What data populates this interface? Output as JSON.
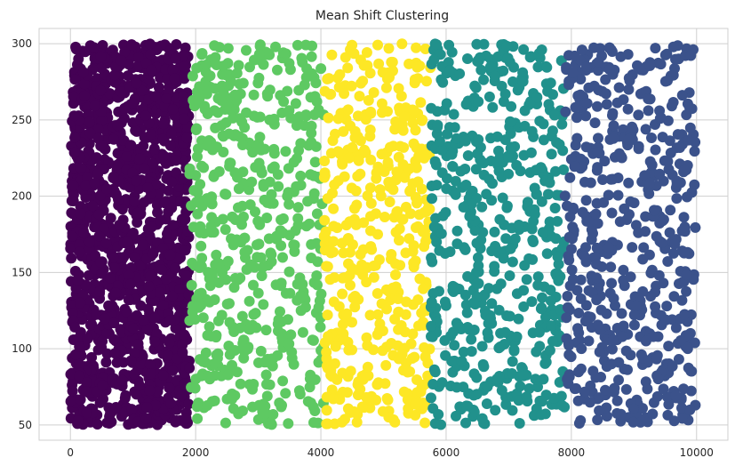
{
  "chart_data": {
    "type": "scatter",
    "title": "Mean Shift Clustering",
    "xlabel": "",
    "ylabel": "",
    "xlim": [
      -500,
      10500
    ],
    "ylim": [
      40,
      310
    ],
    "xticks": [
      0,
      2000,
      4000,
      6000,
      8000,
      10000
    ],
    "yticks": [
      50,
      100,
      150,
      200,
      250,
      300
    ],
    "grid": true,
    "legend": "none",
    "colors": [
      "#440154",
      "#5ec962",
      "#fde725",
      "#21918c",
      "#3b528b"
    ],
    "series": [
      {
        "x_range": [
          0,
          1900
        ],
        "y_range": [
          50,
          300
        ],
        "color": "#440154",
        "count": 1400
      },
      {
        "x_range": [
          1900,
          4050
        ],
        "y_range": [
          50,
          300
        ],
        "color": "#5ec962",
        "count": 520
      },
      {
        "x_range": [
          4050,
          5750
        ],
        "y_range": [
          50,
          300
        ],
        "color": "#fde725",
        "count": 430
      },
      {
        "x_range": [
          5750,
          7900
        ],
        "y_range": [
          50,
          300
        ],
        "color": "#21918c",
        "count": 520
      },
      {
        "x_range": [
          7900,
          10000
        ],
        "y_range": [
          50,
          300
        ],
        "color": "#3b528b",
        "count": 520
      }
    ]
  }
}
